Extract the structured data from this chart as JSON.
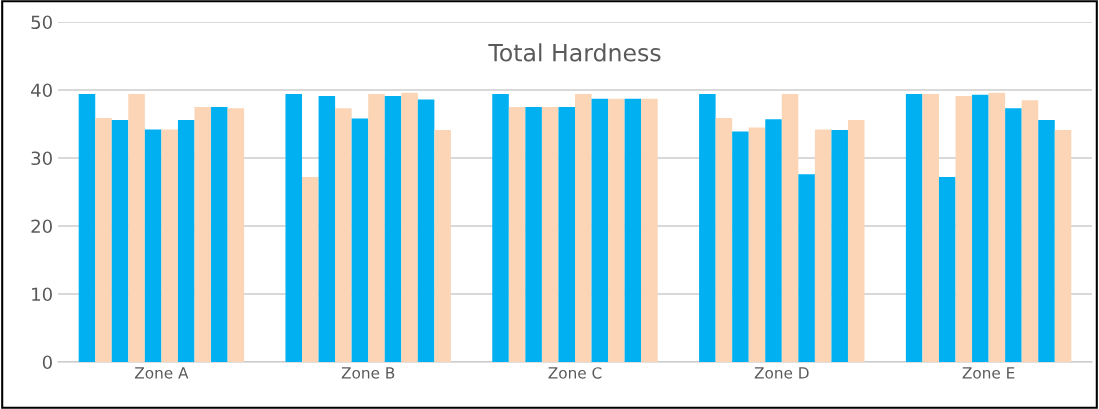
{
  "chart_data": {
    "type": "bar",
    "title": "Total Hardness",
    "categories": [
      "Zone A",
      "Zone B",
      "Zone C",
      "Zone D",
      "Zone E"
    ],
    "series": [
      {
        "color": "#00b0f0",
        "values": [
          39.4,
          39.4,
          39.4,
          39.4,
          39.4
        ]
      },
      {
        "color": "#fbd5b5",
        "values": [
          35.9,
          27.2,
          37.5,
          35.9,
          39.4
        ]
      },
      {
        "color": "#00b0f0",
        "values": [
          35.6,
          39.1,
          37.5,
          33.9,
          27.2
        ]
      },
      {
        "color": "#fbd5b5",
        "values": [
          39.4,
          37.3,
          37.5,
          34.5,
          39.1
        ]
      },
      {
        "color": "#00b0f0",
        "values": [
          34.2,
          35.8,
          37.5,
          35.7,
          39.3
        ]
      },
      {
        "color": "#fbd5b5",
        "values": [
          34.2,
          39.4,
          39.4,
          39.4,
          39.6
        ]
      },
      {
        "color": "#00b0f0",
        "values": [
          35.6,
          39.1,
          38.7,
          27.6,
          37.3
        ]
      },
      {
        "color": "#fbd5b5",
        "values": [
          37.5,
          39.6,
          38.7,
          34.2,
          38.5
        ]
      },
      {
        "color": "#00b0f0",
        "values": [
          37.5,
          38.6,
          38.7,
          34.1,
          35.6
        ]
      },
      {
        "color": "#fbd5b5",
        "values": [
          37.3,
          34.1,
          38.7,
          35.6,
          34.1
        ]
      }
    ],
    "ylim": [
      0,
      50
    ],
    "yticks": [
      0,
      10,
      20,
      30,
      40,
      50
    ],
    "grid": "y",
    "legend": false
  }
}
